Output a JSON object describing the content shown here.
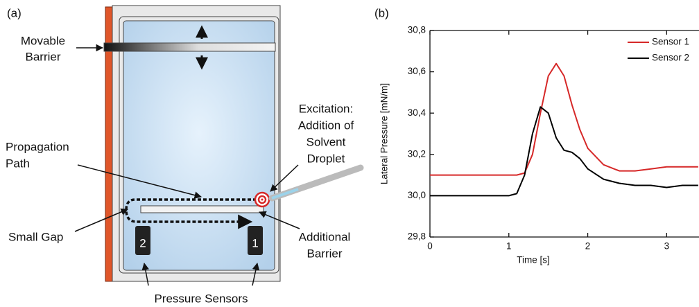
{
  "diagram": {
    "panel_label": "(a)",
    "movable_barrier": [
      "Movable",
      "Barrier"
    ],
    "excitation": [
      "Excitation:",
      "Addition of",
      "Solvent",
      "Droplet"
    ],
    "propagation_path": [
      "Propagation",
      "Path"
    ],
    "small_gap": "Small Gap",
    "additional_barrier": [
      "Additional",
      "Barrier"
    ],
    "pressure_sensors": "Pressure Sensors",
    "sensor_labels": [
      "2",
      "1"
    ]
  },
  "chart_data": {
    "type": "line",
    "panel_label": "(b)",
    "xlabel": "Time [s]",
    "ylabel": "Lateral Pressure [mN/m]",
    "x": [
      0,
      0.5,
      1.0,
      1.1,
      1.2,
      1.3,
      1.4,
      1.5,
      1.6,
      1.7,
      1.8,
      1.9,
      2.0,
      2.2,
      2.4,
      2.6,
      2.8,
      3.0,
      3.2,
      3.4
    ],
    "series": [
      {
        "name": "Sensor 1",
        "color": "#d62828",
        "values": [
          30.1,
          30.1,
          30.1,
          30.1,
          30.11,
          30.2,
          30.4,
          30.58,
          30.64,
          30.58,
          30.44,
          30.32,
          30.23,
          30.15,
          30.12,
          30.12,
          30.13,
          30.14,
          30.14,
          30.14
        ]
      },
      {
        "name": "Sensor 2",
        "color": "#000000",
        "values": [
          30.0,
          30.0,
          30.0,
          30.01,
          30.1,
          30.3,
          30.43,
          30.4,
          30.28,
          30.22,
          30.21,
          30.18,
          30.13,
          30.08,
          30.06,
          30.05,
          30.05,
          30.04,
          30.05,
          30.05
        ]
      }
    ],
    "xlim": [
      0,
      3.41
    ],
    "xticks": [
      0,
      1,
      2,
      3
    ],
    "ylim": [
      29.8,
      30.8
    ],
    "yticks": [
      {
        "value": 29.8,
        "label": "29,8"
      },
      {
        "value": 30.0,
        "label": "30,0"
      },
      {
        "value": 30.2,
        "label": "30,2"
      },
      {
        "value": 30.4,
        "label": "30,4"
      },
      {
        "value": 30.6,
        "label": "30,6"
      },
      {
        "value": 30.8,
        "label": "30,8"
      }
    ],
    "legend": "upper right"
  }
}
